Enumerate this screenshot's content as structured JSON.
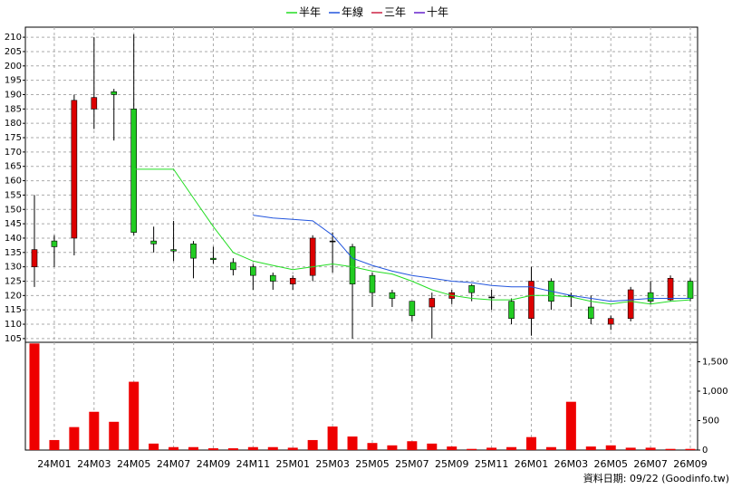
{
  "chart_data": {
    "type": "candlestick",
    "categories": [
      null,
      "24M01",
      null,
      "24M03",
      null,
      "24M05",
      null,
      "24M07",
      null,
      "24M09",
      null,
      "24M11",
      null,
      "25M01",
      null,
      "25M03",
      null,
      "25M05",
      null,
      "25M07",
      null,
      "25M09",
      null,
      "25M11",
      null,
      "26M01",
      null,
      "26M03",
      null,
      "26M05",
      null,
      "26M07",
      null,
      "26M09"
    ],
    "open": [
      130,
      139,
      140,
      185,
      191,
      185,
      139,
      136,
      138,
      133,
      131.5,
      130,
      127,
      124,
      127,
      139,
      137,
      127,
      121,
      118,
      116,
      119,
      123.5,
      119.5,
      118,
      112,
      125,
      120,
      116,
      110,
      112,
      121,
      118.5,
      125
    ],
    "high": [
      155,
      141,
      190,
      210,
      192,
      211,
      144,
      146,
      139,
      137,
      133,
      131,
      128,
      127,
      141,
      142,
      138,
      128,
      122,
      118,
      121,
      122,
      124,
      122,
      119,
      130,
      126,
      121,
      120,
      113,
      123,
      125,
      127,
      126
    ],
    "low": [
      123,
      130,
      134,
      178,
      174,
      141,
      135,
      132,
      126,
      131,
      127,
      122,
      122,
      122,
      125,
      128,
      105,
      116,
      116,
      111,
      105,
      117,
      118,
      115,
      110,
      106,
      115,
      116,
      110,
      108,
      111,
      117,
      118,
      118
    ],
    "close": [
      136,
      137,
      188,
      189,
      190,
      142,
      138,
      135.5,
      133,
      132.5,
      129,
      127,
      125,
      126,
      140,
      139,
      124,
      121,
      119,
      113,
      119,
      121,
      121,
      119.5,
      112,
      125,
      118,
      120,
      112,
      112,
      122,
      118,
      126,
      119
    ],
    "up_color": "#dd0000",
    "down_color": "#22cc22",
    "ylim": [
      103.7,
      213.5
    ],
    "yticks": [
      105,
      110,
      115,
      120,
      125,
      130,
      135,
      140,
      145,
      150,
      155,
      160,
      165,
      170,
      175,
      180,
      185,
      190,
      195,
      200,
      205,
      210
    ],
    "grid": true,
    "series": [
      {
        "name": "半年",
        "color": "#22dd22",
        "values": [
          null,
          null,
          null,
          null,
          null,
          164,
          164,
          164,
          154,
          144,
          135,
          132,
          130.5,
          129,
          130,
          131,
          130,
          128.5,
          127.5,
          125,
          122,
          120,
          119,
          118.5,
          118.5,
          120,
          120,
          119.5,
          118,
          117,
          118,
          117,
          118,
          118.5
        ]
      },
      {
        "name": "年線",
        "color": "#2255dd",
        "values": [
          null,
          null,
          null,
          null,
          null,
          null,
          null,
          null,
          null,
          null,
          null,
          148,
          147,
          146.5,
          146,
          141,
          133,
          130.5,
          128.5,
          127,
          126,
          125,
          124.5,
          123.5,
          123,
          123,
          121.5,
          120,
          119,
          118,
          118.5,
          119,
          119,
          119
        ]
      },
      {
        "name": "三年",
        "color": "#cc2244",
        "values": [
          null,
          null,
          null,
          null,
          null,
          null,
          null,
          null,
          null,
          null,
          null,
          null,
          null,
          null,
          null,
          null,
          null,
          null,
          null,
          null,
          null,
          null,
          null,
          null,
          null,
          null,
          null,
          null,
          null,
          null,
          null,
          null,
          null,
          null
        ]
      },
      {
        "name": "十年",
        "color": "#6622cc",
        "values": [
          null,
          null,
          null,
          null,
          null,
          null,
          null,
          null,
          null,
          null,
          null,
          null,
          null,
          null,
          null,
          null,
          null,
          null,
          null,
          null,
          null,
          null,
          null,
          null,
          null,
          null,
          null,
          null,
          null,
          null,
          null,
          null,
          null,
          null
        ]
      }
    ],
    "legend": "top",
    "volume": [
      1810,
      170,
      390,
      650,
      480,
      1160,
      110,
      50,
      50,
      30,
      30,
      50,
      50,
      40,
      170,
      400,
      230,
      120,
      80,
      150,
      110,
      60,
      20,
      40,
      50,
      220,
      50,
      820,
      60,
      80,
      40,
      40,
      20,
      20
    ],
    "volume_color": "#ee0000",
    "y2lim": [
      0,
      1830
    ],
    "y2ticks": [
      0,
      500,
      {
        "value": 1000,
        "label": "1,000"
      },
      {
        "value": 1500,
        "label": "1,500"
      }
    ],
    "footer": "資料日期: 09/22 (Goodinfo.tw)"
  }
}
